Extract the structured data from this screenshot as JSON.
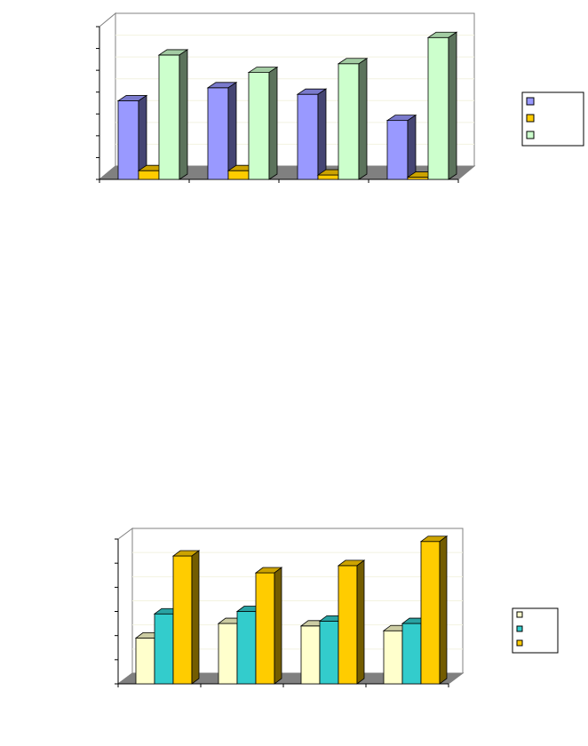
{
  "chart_data": [
    {
      "type": "bar",
      "title": "",
      "xlabel": "",
      "ylabel": "",
      "ylim": [
        0,
        7
      ],
      "grid": true,
      "legend": "right",
      "categories": [
        "",
        "",
        "",
        ""
      ],
      "series": [
        {
          "color": "#9999FF",
          "values": [
            3.6,
            4.2,
            3.9,
            2.7
          ]
        },
        {
          "color": "#FFCC00",
          "values": [
            0.4,
            0.4,
            0.2,
            0.1
          ]
        },
        {
          "color": "#CCFFCC",
          "values": [
            5.7,
            4.9,
            5.3,
            6.5
          ]
        }
      ]
    },
    {
      "type": "bar",
      "title": "",
      "xlabel": "",
      "ylabel": "",
      "ylim": [
        0,
        6
      ],
      "grid": true,
      "legend": "right",
      "categories": [
        "",
        "",
        "",
        ""
      ],
      "series": [
        {
          "color": "#FFFFCC",
          "values": [
            1.9,
            2.5,
            2.4,
            2.2
          ]
        },
        {
          "color": "#33CCCC",
          "values": [
            2.9,
            3.0,
            2.6,
            2.5
          ]
        },
        {
          "color": "#FFCC00",
          "values": [
            5.3,
            4.6,
            4.9,
            5.9
          ]
        }
      ]
    }
  ]
}
